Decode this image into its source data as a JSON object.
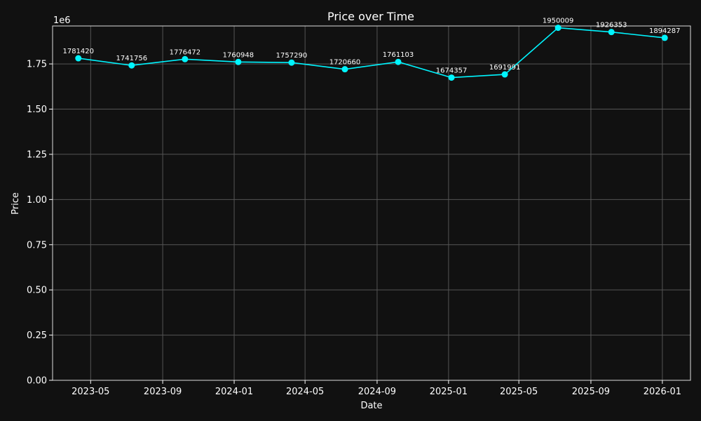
{
  "chart_data": {
    "type": "line",
    "title": "Price over Time",
    "xlabel": "Date",
    "ylabel": "Price",
    "y_offset_label": "1e6",
    "x": [
      "2023-04-10",
      "2023-07-10",
      "2023-10-09",
      "2024-01-08",
      "2024-04-08",
      "2024-07-08",
      "2024-10-07",
      "2025-01-06",
      "2025-04-07",
      "2025-07-07",
      "2025-10-06",
      "2026-01-05"
    ],
    "series": [
      {
        "values": [
          1781420,
          1741756,
          1776472,
          1760948,
          1757290,
          1720660,
          1761103,
          1674357,
          1691991,
          1950009,
          1926353,
          1894287
        ],
        "data_labels": [
          "1781420",
          "1741756",
          "1776472",
          "1760948",
          "1757290",
          "1720660",
          "1761103",
          "1674357",
          "1691991",
          "1950009",
          "1926353",
          "1894287"
        ],
        "color": "#00f5ff"
      }
    ],
    "ylim": [
      0,
      1960000
    ],
    "xlim": [
      "2023-02-25",
      "2026-02-18"
    ],
    "y_ticks": [
      0,
      250000,
      500000,
      750000,
      1000000,
      1250000,
      1500000,
      1750000
    ],
    "y_tick_labels": [
      "0.00",
      "0.25",
      "0.50",
      "0.75",
      "1.00",
      "1.25",
      "1.50",
      "1.75"
    ],
    "x_ticks": [
      "2023-05-01",
      "2023-09-01",
      "2024-01-01",
      "2024-05-01",
      "2024-09-01",
      "2025-01-01",
      "2025-05-01",
      "2025-09-01",
      "2026-01-01"
    ],
    "x_tick_labels": [
      "2023-05",
      "2023-09",
      "2024-01",
      "2024-05",
      "2024-09",
      "2025-01",
      "2025-05",
      "2025-09",
      "2026-01"
    ],
    "grid": true,
    "background": "#111111",
    "grid_color": "#555555",
    "text_color": "#ffffff"
  }
}
